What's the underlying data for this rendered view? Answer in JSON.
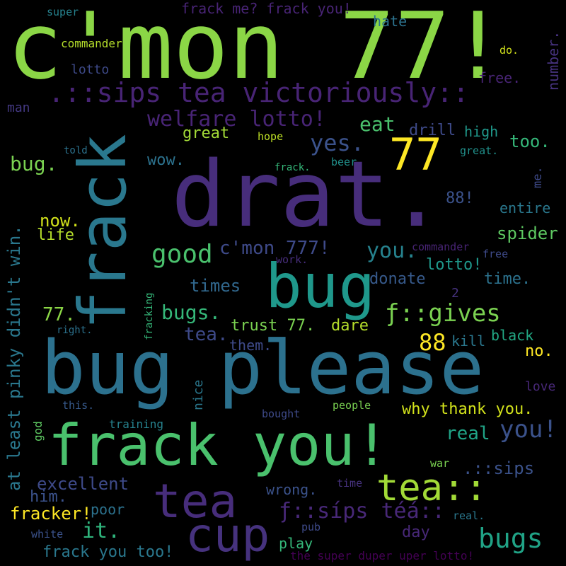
{
  "words": [
    {
      "text": "c'mon 77!",
      "color": "#8bd646"
    },
    {
      "text": "drat.",
      "color": "#472d7b"
    },
    {
      "text": "bug please",
      "color": "#2c718e"
    },
    {
      "text": "frack you!",
      "color": "#4ac16d"
    },
    {
      "text": "bug",
      "color": "#1f988b"
    },
    {
      "text": "frack",
      "color": "#2a788e"
    },
    {
      "text": "tea",
      "color": "#472d7b"
    },
    {
      "text": "cup",
      "color": "#46327e"
    },
    {
      "text": "tea::",
      "color": "#a2da37"
    },
    {
      "text": ".::sips tea victoriously::",
      "color": "#482475"
    },
    {
      "text": "77",
      "color": "#fde725"
    },
    {
      "text": "at least pinky didn't win.",
      "color": "#2a788e"
    },
    {
      "text": "bugs",
      "color": "#20a386"
    },
    {
      "text": "good",
      "color": "#4ac16d"
    },
    {
      "text": "welfare lotto!",
      "color": "#482475"
    },
    {
      "text": "ƒ::gives",
      "color": "#7ad151"
    },
    {
      "text": "ƒ::síps téá::",
      "color": "#482878"
    },
    {
      "text": "c'mon 777!",
      "color": "#3e4a89"
    },
    {
      "text": "you.",
      "color": "#26828e"
    },
    {
      "text": "you!",
      "color": "#3b528b"
    },
    {
      "text": "yes.",
      "color": "#3b528b"
    },
    {
      "text": "eat",
      "color": "#4ac16d"
    },
    {
      "text": "88",
      "color": "#fde725"
    },
    {
      "text": "bugs.",
      "color": "#35b779"
    },
    {
      "text": "trust 77.",
      "color": "#7ad151"
    },
    {
      "text": "dare",
      "color": "#b5de2b"
    },
    {
      "text": "why thank you.",
      "color": "#d2e21b"
    },
    {
      "text": "excellent",
      "color": "#3e4a89"
    },
    {
      "text": "fracker!",
      "color": "#fde725"
    },
    {
      "text": "it.",
      "color": "#2fb47c"
    },
    {
      "text": "frack you too!",
      "color": "#2a788e"
    },
    {
      "text": "spider",
      "color": "#5ec962"
    },
    {
      "text": "now.",
      "color": "#d2e21b"
    },
    {
      "text": "life",
      "color": "#b5de2b"
    },
    {
      "text": "times",
      "color": "#31688e"
    },
    {
      "text": "tea.",
      "color": "#3e4a89"
    },
    {
      "text": "them.",
      "color": "#3e4a89"
    },
    {
      "text": "lotto!",
      "color": "#1f988b"
    },
    {
      "text": "donate",
      "color": "#375a8c"
    },
    {
      "text": "time.",
      "color": "#2c728e"
    },
    {
      "text": "kill",
      "color": "#2a788e"
    },
    {
      "text": "black",
      "color": "#22a884"
    },
    {
      "text": "no.",
      "color": "#fde725"
    },
    {
      "text": "real",
      "color": "#20a386"
    },
    {
      "text": ".::sips",
      "color": "#3b528b"
    },
    {
      "text": "wrong.",
      "color": "#3b528b"
    },
    {
      "text": "him.",
      "color": "#3b528b"
    },
    {
      "text": "poor",
      "color": "#2c728e"
    },
    {
      "text": "play",
      "color": "#35b779"
    },
    {
      "text": "day",
      "color": "#482878"
    },
    {
      "text": "77.",
      "color": "#8bd646"
    },
    {
      "text": "bug.",
      "color": "#7ad151"
    },
    {
      "text": "great",
      "color": "#a2da37"
    },
    {
      "text": "drill",
      "color": "#3e4a89"
    },
    {
      "text": "high",
      "color": "#1f988b"
    },
    {
      "text": "too.",
      "color": "#35b779"
    },
    {
      "text": "88!",
      "color": "#3b528b"
    },
    {
      "text": "entire",
      "color": "#2a788e"
    },
    {
      "text": "wow.",
      "color": "#2c728e"
    },
    {
      "text": "frack me? frack you!",
      "color": "#482475"
    },
    {
      "text": "hate",
      "color": "#2c728e"
    },
    {
      "text": "lotto",
      "color": "#3e4a89"
    },
    {
      "text": "free.",
      "color": "#482475"
    },
    {
      "text": "number.",
      "color": "#46327e"
    },
    {
      "text": "man",
      "color": "#443983"
    },
    {
      "text": "commander",
      "color": "#b5de2b"
    },
    {
      "text": "super",
      "color": "#26828e"
    },
    {
      "text": "do.",
      "color": "#d2e21b"
    },
    {
      "text": "hope",
      "color": "#bddf26"
    },
    {
      "text": "told",
      "color": "#2c728e"
    },
    {
      "text": "frack.",
      "color": "#35b779"
    },
    {
      "text": "beer",
      "color": "#21918c"
    },
    {
      "text": "great.",
      "color": "#21918c"
    },
    {
      "text": "me.",
      "color": "#3e4a89"
    },
    {
      "text": "commander",
      "color": "#482475"
    },
    {
      "text": "free",
      "color": "#3e4a89"
    },
    {
      "text": "work.",
      "color": "#472d7b"
    },
    {
      "text": "2",
      "color": "#46327e"
    },
    {
      "text": "right.",
      "color": "#2c728e"
    },
    {
      "text": "fracking",
      "color": "#35b779"
    },
    {
      "text": "nice",
      "color": "#2a788e"
    },
    {
      "text": "love",
      "color": "#482878"
    },
    {
      "text": "this.",
      "color": "#375a8c"
    },
    {
      "text": "people",
      "color": "#7ad151"
    },
    {
      "text": "bought",
      "color": "#3e4a89"
    },
    {
      "text": "god",
      "color": "#5ec962"
    },
    {
      "text": "training",
      "color": "#26828e"
    },
    {
      "text": "war",
      "color": "#7ad151"
    },
    {
      "text": "time",
      "color": "#46327e"
    },
    {
      "text": "real.",
      "color": "#2a788e"
    },
    {
      "text": "white",
      "color": "#3b528b"
    },
    {
      "text": "pub",
      "color": "#3e4a89"
    },
    {
      "text": "the super duper uper lotto!",
      "color": "#440154"
    }
  ]
}
